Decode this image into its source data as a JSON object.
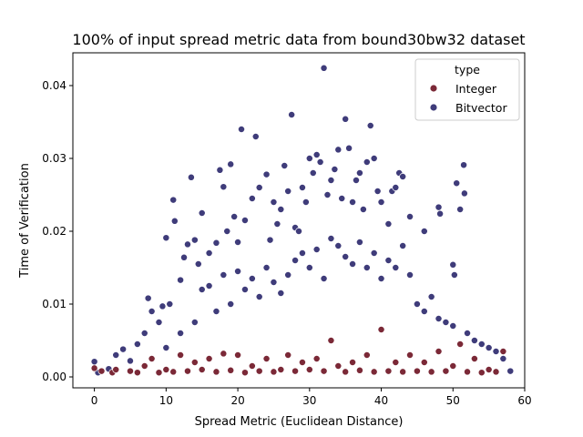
{
  "chart_data": {
    "type": "scatter",
    "title": "100% of input spread metric data from bound30bw32 dataset",
    "xlabel": "Spread Metric (Euclidean Distance)",
    "ylabel": "Time of Verification",
    "xlim": [
      -3,
      60
    ],
    "ylim": [
      -0.0015,
      0.0445
    ],
    "xticks": [
      0,
      10,
      20,
      30,
      40,
      50,
      60
    ],
    "xtick_labels": [
      "0",
      "10",
      "20",
      "30",
      "40",
      "50",
      "60"
    ],
    "yticks": [
      0.0,
      0.01,
      0.02,
      0.03,
      0.04
    ],
    "ytick_labels": [
      "0.00",
      "0.01",
      "0.02",
      "0.03",
      "0.04"
    ],
    "grid": false,
    "legend": {
      "title": "type",
      "position": "top-right",
      "entries": [
        {
          "label": "Integer",
          "color": "#7b2937"
        },
        {
          "label": "Bitvector",
          "color": "#3f3c7a"
        }
      ]
    },
    "series": [
      {
        "name": "Integer",
        "color": "#7b2937",
        "points": [
          [
            0,
            0.0012
          ],
          [
            1,
            0.0008
          ],
          [
            2.5,
            0.0006
          ],
          [
            3,
            0.001
          ],
          [
            5,
            0.0008
          ],
          [
            6,
            0.0006
          ],
          [
            7,
            0.0015
          ],
          [
            8,
            0.0025
          ],
          [
            9,
            0.0006
          ],
          [
            10,
            0.001
          ],
          [
            11,
            0.0007
          ],
          [
            12,
            0.003
          ],
          [
            13,
            0.0008
          ],
          [
            14,
            0.002
          ],
          [
            15,
            0.001
          ],
          [
            16,
            0.0025
          ],
          [
            17,
            0.0007
          ],
          [
            18,
            0.0032
          ],
          [
            19,
            0.0009
          ],
          [
            20,
            0.003
          ],
          [
            21,
            0.0006
          ],
          [
            22,
            0.0015
          ],
          [
            23,
            0.0008
          ],
          [
            24,
            0.0025
          ],
          [
            25,
            0.0007
          ],
          [
            26,
            0.001
          ],
          [
            27,
            0.003
          ],
          [
            28,
            0.0008
          ],
          [
            29,
            0.002
          ],
          [
            30,
            0.001
          ],
          [
            31,
            0.0025
          ],
          [
            32,
            0.0008
          ],
          [
            33,
            0.005
          ],
          [
            34,
            0.0015
          ],
          [
            35,
            0.0007
          ],
          [
            36,
            0.002
          ],
          [
            37,
            0.0009
          ],
          [
            38,
            0.003
          ],
          [
            39,
            0.0007
          ],
          [
            40,
            0.0065
          ],
          [
            41,
            0.0008
          ],
          [
            42,
            0.002
          ],
          [
            43,
            0.0007
          ],
          [
            44,
            0.003
          ],
          [
            45,
            0.0008
          ],
          [
            46,
            0.002
          ],
          [
            47,
            0.0007
          ],
          [
            48,
            0.0035
          ],
          [
            49,
            0.0008
          ],
          [
            50,
            0.0015
          ],
          [
            51,
            0.0045
          ],
          [
            52,
            0.0007
          ],
          [
            53,
            0.0025
          ],
          [
            54,
            0.0006
          ],
          [
            55,
            0.001
          ],
          [
            56,
            0.0007
          ],
          [
            57,
            0.0035
          ]
        ]
      },
      {
        "name": "Bitvector",
        "color": "#3f3c7a",
        "points": [
          [
            0,
            0.0021
          ],
          [
            0.5,
            0.0006
          ],
          [
            2,
            0.0011
          ],
          [
            3,
            0.003
          ],
          [
            4,
            0.0038
          ],
          [
            5,
            0.0022
          ],
          [
            6,
            0.0045
          ],
          [
            7,
            0.006
          ],
          [
            7.5,
            0.0108
          ],
          [
            8,
            0.009
          ],
          [
            9,
            0.0075
          ],
          [
            9.5,
            0.0097
          ],
          [
            10,
            0.0191
          ],
          [
            10.5,
            0.01
          ],
          [
            11,
            0.0243
          ],
          [
            11.2,
            0.0214
          ],
          [
            12,
            0.0133
          ],
          [
            12.5,
            0.0164
          ],
          [
            13,
            0.0182
          ],
          [
            13.5,
            0.0274
          ],
          [
            14,
            0.0188
          ],
          [
            14.5,
            0.0155
          ],
          [
            15,
            0.0225
          ],
          [
            16,
            0.017
          ],
          [
            17,
            0.0184
          ],
          [
            17.5,
            0.0284
          ],
          [
            18,
            0.0261
          ],
          [
            18.5,
            0.02
          ],
          [
            19,
            0.0292
          ],
          [
            19.5,
            0.022
          ],
          [
            20,
            0.0185
          ],
          [
            20.5,
            0.034
          ],
          [
            21,
            0.0215
          ],
          [
            22,
            0.0245
          ],
          [
            22.5,
            0.033
          ],
          [
            23,
            0.026
          ],
          [
            24,
            0.0278
          ],
          [
            24.5,
            0.0188
          ],
          [
            25,
            0.024
          ],
          [
            25.5,
            0.021
          ],
          [
            26,
            0.023
          ],
          [
            26.5,
            0.029
          ],
          [
            27,
            0.0255
          ],
          [
            27.5,
            0.036
          ],
          [
            28,
            0.0205
          ],
          [
            28.5,
            0.02
          ],
          [
            29,
            0.026
          ],
          [
            29.5,
            0.024
          ],
          [
            30,
            0.03
          ],
          [
            30.5,
            0.028
          ],
          [
            31,
            0.0305
          ],
          [
            31.5,
            0.0295
          ],
          [
            32,
            0.0424
          ],
          [
            32.5,
            0.025
          ],
          [
            33,
            0.027
          ],
          [
            33.5,
            0.0285
          ],
          [
            34,
            0.0312
          ],
          [
            34.5,
            0.0245
          ],
          [
            35,
            0.0354
          ],
          [
            35.5,
            0.0314
          ],
          [
            36,
            0.024
          ],
          [
            36.5,
            0.027
          ],
          [
            37,
            0.028
          ],
          [
            37.5,
            0.023
          ],
          [
            38,
            0.0295
          ],
          [
            38.5,
            0.0345
          ],
          [
            39,
            0.03
          ],
          [
            39.5,
            0.0255
          ],
          [
            40,
            0.024
          ],
          [
            41,
            0.021
          ],
          [
            41.5,
            0.0255
          ],
          [
            42,
            0.026
          ],
          [
            42.5,
            0.028
          ],
          [
            43,
            0.0275
          ],
          [
            44,
            0.022
          ],
          [
            46,
            0.02
          ],
          [
            48,
            0.0233
          ],
          [
            48.2,
            0.0224
          ],
          [
            50,
            0.0154
          ],
          [
            50.2,
            0.014
          ],
          [
            50.5,
            0.0266
          ],
          [
            51,
            0.023
          ],
          [
            51.5,
            0.0291
          ],
          [
            51.6,
            0.0252
          ],
          [
            10,
            0.004
          ],
          [
            12,
            0.006
          ],
          [
            14,
            0.0075
          ],
          [
            15,
            0.012
          ],
          [
            16,
            0.0125
          ],
          [
            17,
            0.009
          ],
          [
            18,
            0.014
          ],
          [
            19,
            0.01
          ],
          [
            20,
            0.0145
          ],
          [
            21,
            0.012
          ],
          [
            22,
            0.0135
          ],
          [
            23,
            0.011
          ],
          [
            24,
            0.015
          ],
          [
            25,
            0.013
          ],
          [
            26,
            0.0115
          ],
          [
            27,
            0.014
          ],
          [
            28,
            0.016
          ],
          [
            29,
            0.017
          ],
          [
            30,
            0.015
          ],
          [
            31,
            0.0175
          ],
          [
            32,
            0.0135
          ],
          [
            33,
            0.019
          ],
          [
            34,
            0.018
          ],
          [
            35,
            0.0165
          ],
          [
            36,
            0.0155
          ],
          [
            37,
            0.0185
          ],
          [
            38,
            0.015
          ],
          [
            39,
            0.017
          ],
          [
            40,
            0.0135
          ],
          [
            41,
            0.016
          ],
          [
            42,
            0.015
          ],
          [
            43,
            0.018
          ],
          [
            44,
            0.014
          ],
          [
            45,
            0.01
          ],
          [
            46,
            0.009
          ],
          [
            47,
            0.011
          ],
          [
            48,
            0.008
          ],
          [
            49,
            0.0075
          ],
          [
            50,
            0.007
          ],
          [
            52,
            0.006
          ],
          [
            53,
            0.005
          ],
          [
            54,
            0.0045
          ],
          [
            55,
            0.004
          ],
          [
            56,
            0.0035
          ],
          [
            57,
            0.0025
          ],
          [
            58,
            0.0008
          ]
        ]
      }
    ]
  }
}
